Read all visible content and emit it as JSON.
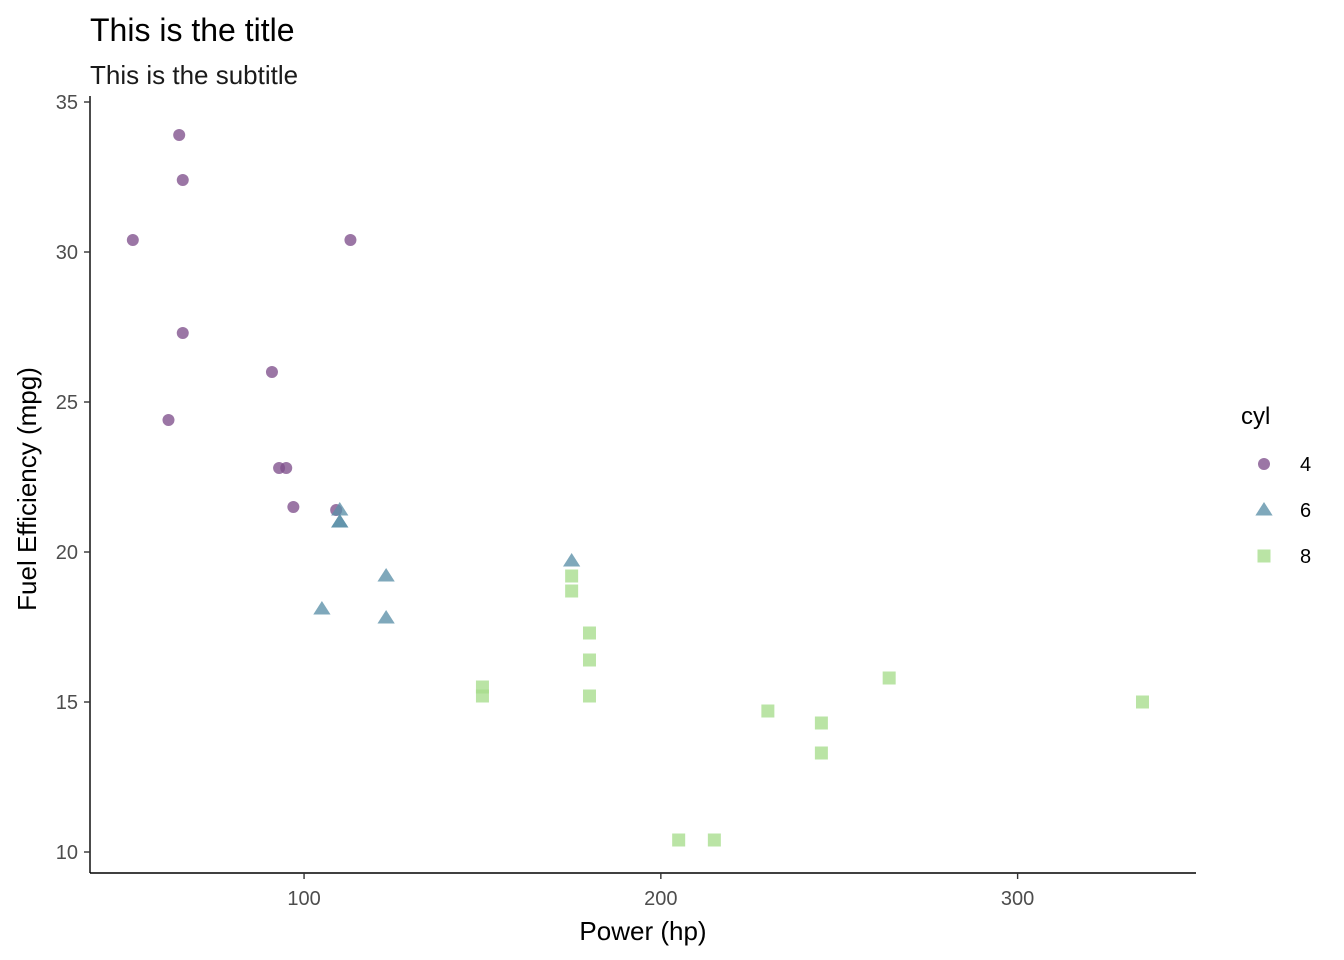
{
  "chart_data": {
    "type": "scatter",
    "title": "This is the title",
    "subtitle": "This is the subtitle",
    "xlabel": "Power (hp)",
    "ylabel": "Fuel Efficiency (mpg)",
    "xlim": [
      40,
      350
    ],
    "ylim": [
      9.3,
      35.2
    ],
    "x_ticks": [
      100,
      200,
      300
    ],
    "y_ticks": [
      10,
      15,
      20,
      25,
      30,
      35
    ],
    "grid": false,
    "legend": {
      "title": "cyl",
      "placement": "right"
    },
    "series": [
      {
        "name": "4",
        "shape": "circle",
        "color": "#7F4F8C",
        "points": [
          {
            "x": 93,
            "y": 22.8
          },
          {
            "x": 62,
            "y": 24.4
          },
          {
            "x": 95,
            "y": 22.8
          },
          {
            "x": 66,
            "y": 32.4
          },
          {
            "x": 52,
            "y": 30.4
          },
          {
            "x": 65,
            "y": 33.9
          },
          {
            "x": 97,
            "y": 21.5
          },
          {
            "x": 66,
            "y": 27.3
          },
          {
            "x": 91,
            "y": 26.0
          },
          {
            "x": 113,
            "y": 30.4
          },
          {
            "x": 109,
            "y": 21.4
          }
        ]
      },
      {
        "name": "6",
        "shape": "triangle",
        "color": "#5B8FA8",
        "points": [
          {
            "x": 110,
            "y": 21.0
          },
          {
            "x": 110,
            "y": 21.0
          },
          {
            "x": 110,
            "y": 21.4
          },
          {
            "x": 105,
            "y": 18.1
          },
          {
            "x": 123,
            "y": 19.2
          },
          {
            "x": 123,
            "y": 17.8
          },
          {
            "x": 175,
            "y": 19.7
          }
        ]
      },
      {
        "name": "8",
        "shape": "square",
        "color": "#A6DC8C",
        "points": [
          {
            "x": 175,
            "y": 18.7
          },
          {
            "x": 245,
            "y": 14.3
          },
          {
            "x": 180,
            "y": 16.4
          },
          {
            "x": 180,
            "y": 17.3
          },
          {
            "x": 180,
            "y": 15.2
          },
          {
            "x": 205,
            "y": 10.4
          },
          {
            "x": 215,
            "y": 10.4
          },
          {
            "x": 230,
            "y": 14.7
          },
          {
            "x": 150,
            "y": 15.5
          },
          {
            "x": 150,
            "y": 15.2
          },
          {
            "x": 245,
            "y": 13.3
          },
          {
            "x": 175,
            "y": 19.2
          },
          {
            "x": 264,
            "y": 15.8
          },
          {
            "x": 335,
            "y": 15.0
          }
        ]
      }
    ]
  }
}
